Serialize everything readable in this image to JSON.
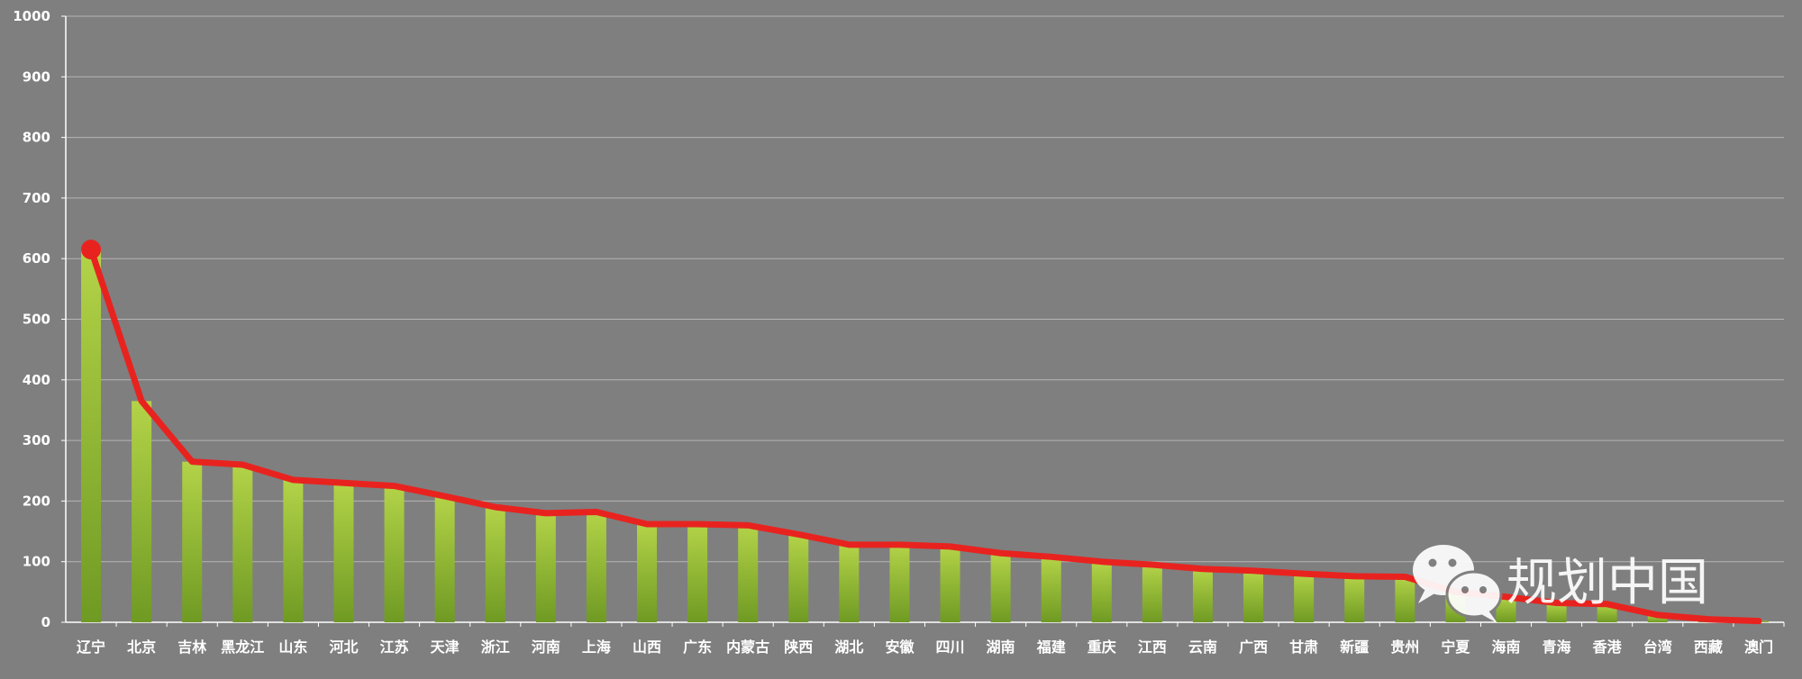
{
  "chart_data": {
    "type": "bar",
    "categories": [
      "辽宁",
      "北京",
      "吉林",
      "黑龙江",
      "山东",
      "河北",
      "江苏",
      "天津",
      "浙江",
      "河南",
      "上海",
      "山西",
      "广东",
      "内蒙古",
      "陕西",
      "湖北",
      "安徽",
      "四川",
      "湖南",
      "福建",
      "重庆",
      "江西",
      "云南",
      "广西",
      "甘肃",
      "新疆",
      "贵州",
      "宁夏",
      "海南",
      "青海",
      "香港",
      "台湾",
      "西藏",
      "澳门"
    ],
    "series": [
      {
        "type": "bar",
        "values": [
          615,
          365,
          265,
          260,
          235,
          230,
          225,
          208,
          190,
          180,
          182,
          162,
          162,
          160,
          145,
          128,
          128,
          125,
          114,
          108,
          100,
          95,
          88,
          85,
          80,
          76,
          75,
          50,
          42,
          32,
          30,
          12,
          5,
          2
        ]
      },
      {
        "type": "line",
        "values": [
          615,
          365,
          265,
          260,
          235,
          230,
          225,
          208,
          190,
          180,
          182,
          162,
          162,
          160,
          145,
          128,
          128,
          125,
          114,
          108,
          100,
          95,
          88,
          85,
          80,
          76,
          75,
          50,
          42,
          32,
          30,
          12,
          5,
          2
        ]
      }
    ],
    "yticks": [
      "0",
      "100",
      "200",
      "300",
      "400",
      "500",
      "600",
      "700",
      "800",
      "900",
      "1000"
    ],
    "ylim": [
      0,
      1000
    ],
    "grid": true,
    "colors": {
      "background": "#7f7f7f",
      "bar_light": "#b3d348",
      "bar_dark": "#6f9a23",
      "line": "#e8231f",
      "grid": "#b5b5b5",
      "text": "#ffffff"
    }
  },
  "watermark": {
    "text": "规划中国",
    "icon": "wechat-icon"
  }
}
